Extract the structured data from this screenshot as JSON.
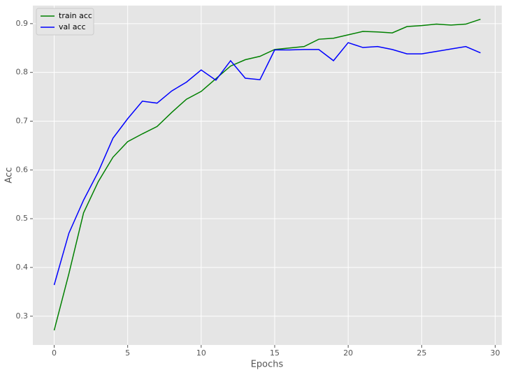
{
  "chart_data": {
    "type": "line",
    "x_label": "Epochs",
    "y_label": "Acc",
    "x": [
      0,
      1,
      2,
      3,
      4,
      5,
      6,
      7,
      8,
      9,
      10,
      11,
      12,
      13,
      14,
      15,
      16,
      17,
      18,
      19,
      20,
      21,
      22,
      23,
      24,
      25,
      26,
      27,
      28,
      29
    ],
    "series": [
      {
        "name": "train acc",
        "color": "#008000",
        "values": [
          0.271,
          0.387,
          0.512,
          0.576,
          0.626,
          0.658,
          0.674,
          0.689,
          0.718,
          0.745,
          0.761,
          0.787,
          0.813,
          0.826,
          0.833,
          0.847,
          0.85,
          0.853,
          0.868,
          0.87,
          0.877,
          0.884,
          0.883,
          0.881,
          0.894,
          0.896,
          0.899,
          0.897,
          0.899,
          0.909
        ]
      },
      {
        "name": "val acc",
        "color": "#0000ff",
        "values": [
          0.364,
          0.47,
          0.538,
          0.596,
          0.665,
          0.705,
          0.741,
          0.737,
          0.762,
          0.78,
          0.805,
          0.784,
          0.824,
          0.788,
          0.785,
          0.846,
          0.846,
          0.847,
          0.847,
          0.824,
          0.861,
          0.851,
          0.853,
          0.847,
          0.838,
          0.838,
          0.843,
          0.848,
          0.853,
          0.84
        ]
      }
    ],
    "xlim": [
      -1.45,
      30.45
    ],
    "xticks": [
      0,
      5,
      10,
      15,
      20,
      25,
      30
    ],
    "ylim": [
      0.241,
      0.937
    ],
    "yticks": [
      0.3,
      0.4,
      0.5,
      0.6,
      0.7,
      0.8,
      0.9
    ],
    "grid": true,
    "legend": "upper-left"
  }
}
